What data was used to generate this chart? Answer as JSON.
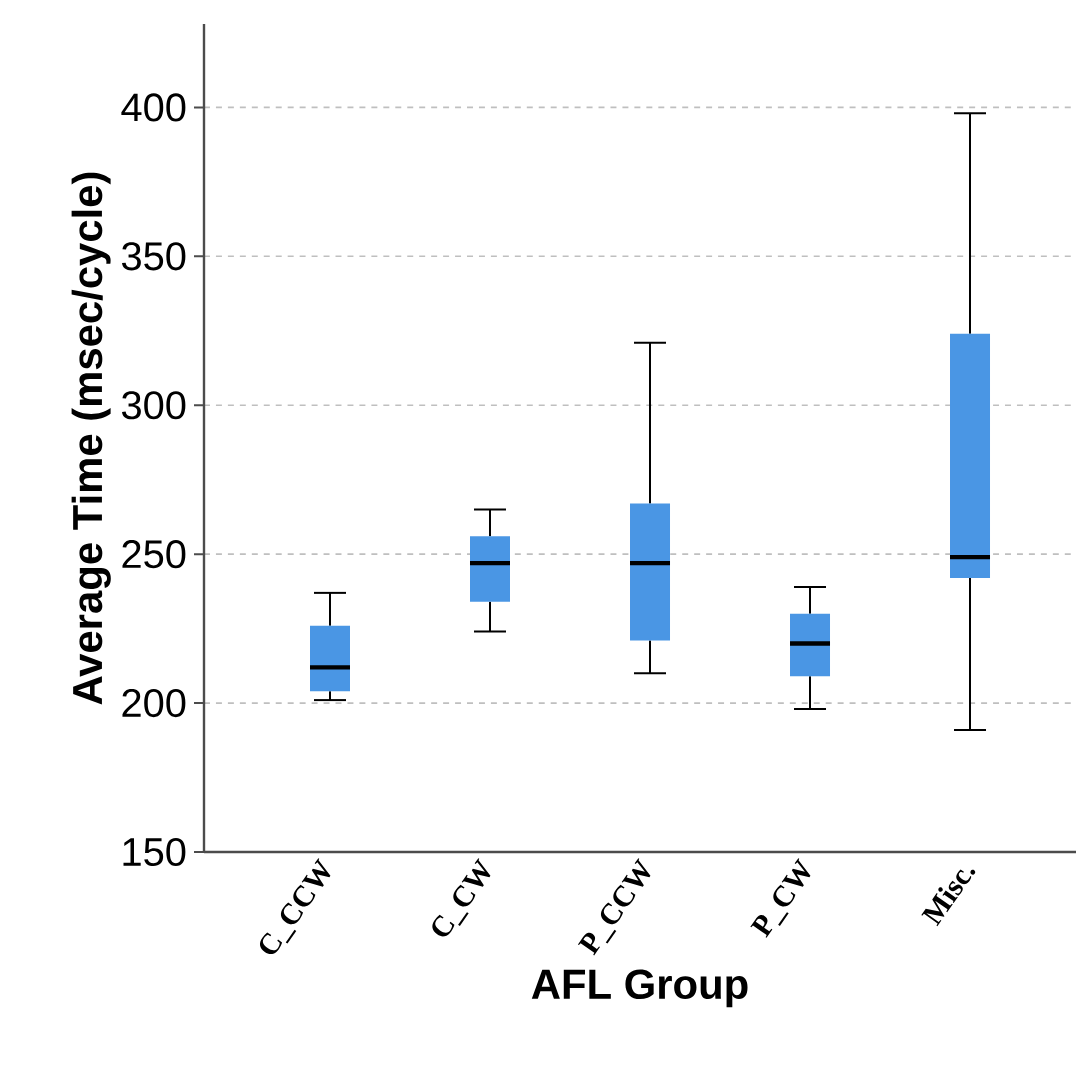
{
  "chart_data": {
    "type": "box",
    "xlabel": "AFL Group",
    "ylabel": "Average Time (msec/cycle)",
    "categories": [
      "C_CCW",
      "C_CW",
      "P_CCW",
      "P_CW",
      "Misc."
    ],
    "color": "#4a96e4",
    "boxes": [
      {
        "low": 201,
        "q1": 204,
        "median": 212,
        "q3": 226,
        "high": 237
      },
      {
        "low": 224,
        "q1": 234,
        "median": 247,
        "q3": 256,
        "high": 265
      },
      {
        "low": 210,
        "q1": 221,
        "median": 247,
        "q3": 267,
        "high": 321
      },
      {
        "low": 198,
        "q1": 209,
        "median": 220,
        "q3": 230,
        "high": 239
      },
      {
        "low": 191,
        "q1": 242,
        "median": 249,
        "q3": 324,
        "high": 398
      }
    ],
    "ylim": [
      150,
      428
    ],
    "yticks": [
      150,
      200,
      250,
      300,
      350,
      400
    ],
    "grid": "y"
  }
}
